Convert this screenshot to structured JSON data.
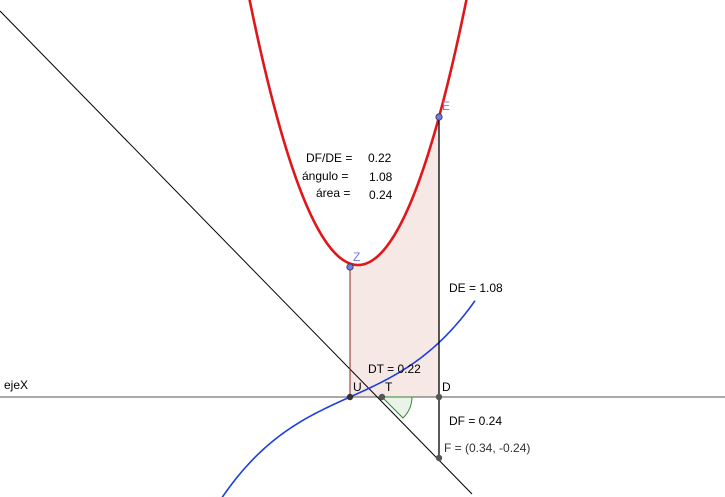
{
  "labels": {
    "axis": "ejeX",
    "point_z": "Z",
    "point_e": "E",
    "point_u": "U",
    "point_t": "T",
    "point_d": "D",
    "point_f": "F = (0.34, -0.24)",
    "de": "DE = 1.08",
    "dt": "DT = 0.22",
    "df": "DF = 0.24"
  },
  "readout": {
    "ratio_label": "DF/DE =",
    "ratio_value": "0.22",
    "angle_label": "ángulo =",
    "angle_value": "1.08",
    "area_label": "área =",
    "area_value": "0.24"
  },
  "colors": {
    "parabola": "#e0161a",
    "cubic": "#1c3ee0",
    "tangent": "#000000",
    "axis": "#555555",
    "fill": "#f6e8e4",
    "arc": "#2e8b2e",
    "point_blue": "#6a7cf0"
  }
}
